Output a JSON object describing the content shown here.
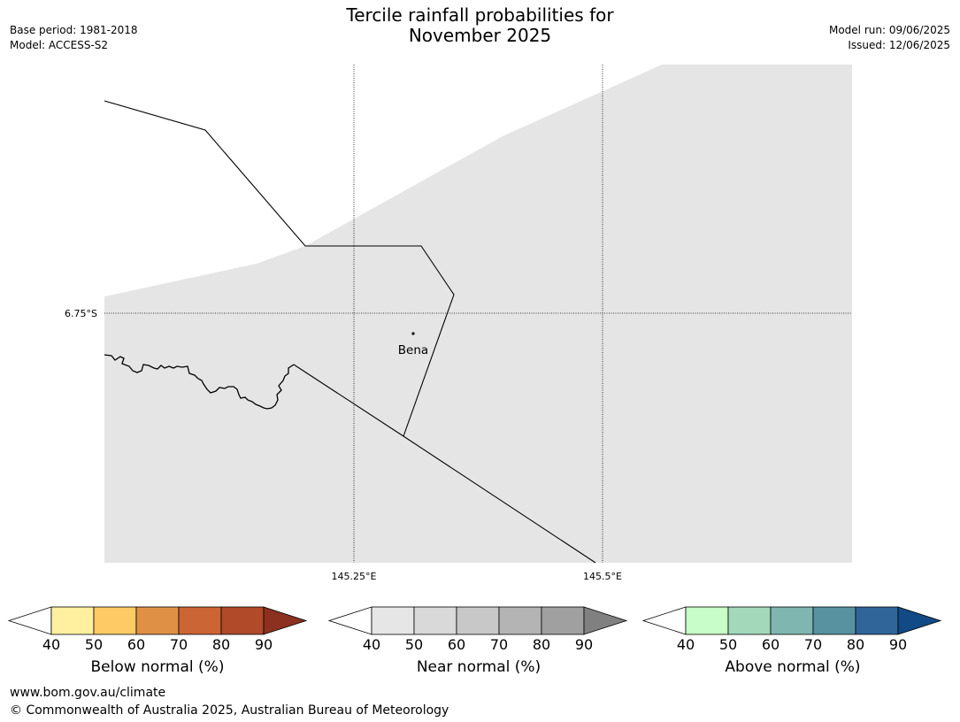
{
  "header": {
    "title_line1": "Tercile rainfall probabilities for",
    "title_line2": "November 2025",
    "base_period": "Base period: 1981-2018",
    "model": "Model: ACCESS-S2",
    "model_run": "Model run: 09/06/2025",
    "issued": "Issued: 12/06/2025"
  },
  "map": {
    "lat_label": "6.75°S",
    "lon_labels": [
      "145.25°E",
      "145.5°E"
    ],
    "place": "Bena",
    "land_color": "#e5e5e5",
    "sea_color": "#ffffff"
  },
  "colorbars": [
    {
      "name": "below",
      "label": "Below normal (%)",
      "ticks": [
        "40",
        "50",
        "60",
        "70",
        "80",
        "90"
      ],
      "colors": [
        "#fff0a0",
        "#fdca66",
        "#e09045",
        "#cc6535",
        "#b04a28",
        "#8c3020"
      ]
    },
    {
      "name": "near",
      "label": "Near normal (%)",
      "ticks": [
        "40",
        "50",
        "60",
        "70",
        "80",
        "90"
      ],
      "colors": [
        "#e6e6e6",
        "#d9d9d9",
        "#c8c8c8",
        "#b4b4b4",
        "#a0a0a0",
        "#808080"
      ]
    },
    {
      "name": "above",
      "label": "Above normal (%)",
      "ticks": [
        "40",
        "50",
        "60",
        "70",
        "80",
        "90"
      ],
      "colors": [
        "#c8fcc8",
        "#a3d8bb",
        "#7fb6b0",
        "#5892a0",
        "#2f6598",
        "#124a86"
      ]
    }
  ],
  "footer": {
    "url": "www.bom.gov.au/climate",
    "copyright": "© Commonwealth of Australia 2025, Australian Bureau of Meteorology"
  }
}
